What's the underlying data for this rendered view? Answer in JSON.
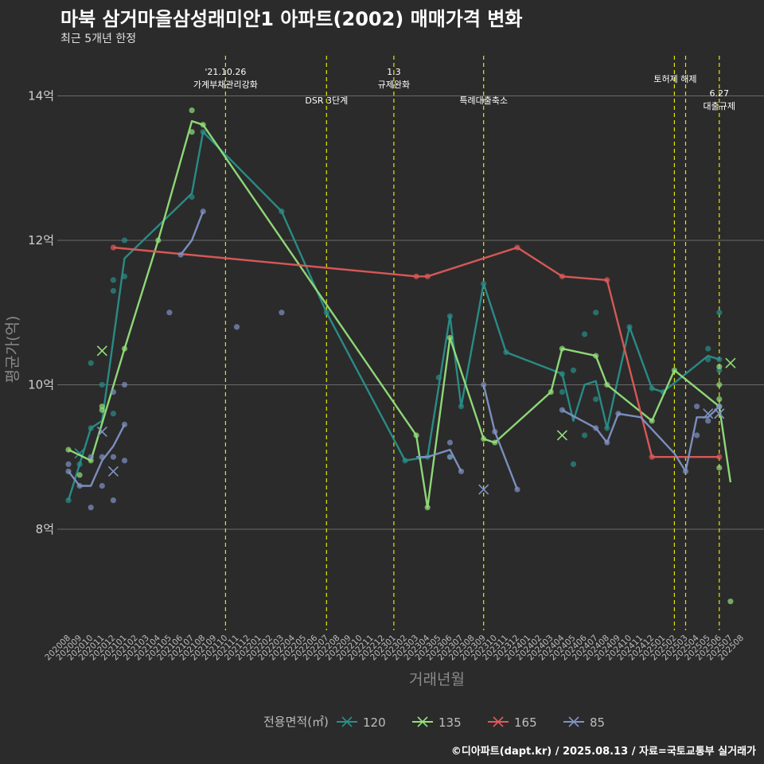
{
  "header": {
    "title": "마북 삼거마을삼성래미안1 아파트(2002) 매매가격 변화",
    "subtitle": "최근 5개년 한정"
  },
  "footer": "©디아파트(dapt.kr) / 2025.08.13 / 자료=국토교통부 실거래가",
  "colors": {
    "background": "#2b2b2b",
    "grid": "#6a6a6a",
    "event_line": "#e6e600",
    "s120": "#2a8f8a",
    "s135": "#94e07a",
    "s165": "#e05a5a",
    "s85": "#7f93c4"
  },
  "chart_data": {
    "type": "line",
    "xlabel": "거래년월",
    "ylabel": "평균가(억)",
    "ylim": [
      6.6,
      14.6
    ],
    "yticks": [
      8,
      10,
      12,
      14
    ],
    "ytick_labels": [
      "8억",
      "10억",
      "12억",
      "14억"
    ],
    "x": [
      "202008",
      "202009",
      "202010",
      "202011",
      "202012",
      "202101",
      "202102",
      "202103",
      "202104",
      "202105",
      "202106",
      "202107",
      "202108",
      "202109",
      "202110",
      "202111",
      "202112",
      "202201",
      "202202",
      "202203",
      "202204",
      "202205",
      "202206",
      "202207",
      "202208",
      "202209",
      "202210",
      "202211",
      "202212",
      "202301",
      "202302",
      "202303",
      "202304",
      "202305",
      "202306",
      "202307",
      "202308",
      "202309",
      "202310",
      "202311",
      "202312",
      "202401",
      "202402",
      "202403",
      "202404",
      "202405",
      "202406",
      "202407",
      "202408",
      "202409",
      "202410",
      "202411",
      "202412",
      "202501",
      "202502",
      "202503",
      "202504",
      "202505",
      "202506",
      "202507",
      "202508"
    ],
    "legend": {
      "title": "전용면적(㎡)",
      "position": "bottom"
    },
    "grid": true,
    "events": [
      {
        "x": "202110",
        "label": "'21.10.26\n가계부채관리강화",
        "level": 0
      },
      {
        "x": "202207",
        "label": "DSR 3단계",
        "level": 2
      },
      {
        "x": "202301",
        "label": "1.3\n규제완화",
        "level": 0
      },
      {
        "x": "202309",
        "label": "특례대출축소",
        "level": 2
      },
      {
        "x": "202502",
        "label": "토허제 해제",
        "level": 1
      },
      {
        "x": "202503",
        "label": "",
        "level": 1
      },
      {
        "x": "202506",
        "label": "6.27\n대출규제",
        "level": 3
      }
    ],
    "series": [
      {
        "name": "120",
        "color": "#2a8f8a",
        "line": [
          [
            "202008",
            8.4
          ],
          [
            "202010",
            9.4
          ],
          [
            "202011",
            9.5
          ],
          [
            "202101",
            11.75
          ],
          [
            "202107",
            12.65
          ],
          [
            "202108",
            13.5
          ],
          [
            "202203",
            12.4
          ],
          [
            "202207",
            11.0
          ],
          [
            "202302",
            8.95
          ],
          [
            "202304",
            9.0
          ],
          [
            "202306",
            10.95
          ],
          [
            "202307",
            9.7
          ],
          [
            "202309",
            11.4
          ],
          [
            "202311",
            10.45
          ],
          [
            "202404",
            10.15
          ],
          [
            "202405",
            9.5
          ],
          [
            "202406",
            10.0
          ],
          [
            "202407",
            10.05
          ],
          [
            "202408",
            9.4
          ],
          [
            "202410",
            10.8
          ],
          [
            "202412",
            9.95
          ],
          [
            "202501",
            9.9
          ],
          [
            "202505",
            10.4
          ],
          [
            "202506",
            10.35
          ]
        ],
        "points": [
          [
            "202008",
            8.4
          ],
          [
            "202009",
            8.9
          ],
          [
            "202010",
            9.4
          ],
          [
            "202010",
            10.3
          ],
          [
            "202011",
            10.0
          ],
          [
            "202012",
            11.45
          ],
          [
            "202012",
            11.3
          ],
          [
            "202012",
            9.6
          ],
          [
            "202101",
            12.0
          ],
          [
            "202101",
            11.5
          ],
          [
            "202107",
            12.6
          ],
          [
            "202108",
            13.5
          ],
          [
            "202203",
            12.4
          ],
          [
            "202207",
            11.0
          ],
          [
            "202302",
            8.95
          ],
          [
            "202304",
            9.0
          ],
          [
            "202305",
            10.1
          ],
          [
            "202306",
            10.95
          ],
          [
            "202306",
            9.0
          ],
          [
            "202307",
            9.7
          ],
          [
            "202309",
            11.4
          ],
          [
            "202311",
            10.45
          ],
          [
            "202404",
            10.15
          ],
          [
            "202404",
            9.9
          ],
          [
            "202405",
            10.2
          ],
          [
            "202405",
            8.9
          ],
          [
            "202406",
            10.7
          ],
          [
            "202406",
            9.3
          ],
          [
            "202407",
            11.0
          ],
          [
            "202407",
            9.8
          ],
          [
            "202408",
            9.4
          ],
          [
            "202410",
            10.8
          ],
          [
            "202412",
            9.95
          ],
          [
            "202501",
            9.9
          ],
          [
            "202505",
            10.5
          ],
          [
            "202505",
            10.35
          ],
          [
            "202506",
            11.0
          ],
          [
            "202506",
            10.35
          ],
          [
            "202506",
            10.2
          ]
        ],
        "crosses": [
          [
            "202009",
            9.05
          ]
        ]
      },
      {
        "name": "135",
        "color": "#94e07a",
        "line": [
          [
            "202008",
            9.1
          ],
          [
            "202010",
            8.95
          ],
          [
            "202101",
            10.5
          ],
          [
            "202104",
            12.0
          ],
          [
            "202107",
            13.65
          ],
          [
            "202108",
            13.6
          ],
          [
            "202303",
            9.3
          ],
          [
            "202304",
            8.3
          ],
          [
            "202306",
            10.65
          ],
          [
            "202309",
            9.25
          ],
          [
            "202310",
            9.2
          ],
          [
            "202403",
            9.9
          ],
          [
            "202404",
            10.5
          ],
          [
            "202407",
            10.4
          ],
          [
            "202408",
            10.0
          ],
          [
            "202412",
            9.5
          ],
          [
            "202502",
            10.2
          ],
          [
            "202506",
            9.7
          ],
          [
            "202507",
            8.65
          ]
        ],
        "points": [
          [
            "202008",
            9.1
          ],
          [
            "202009",
            8.75
          ],
          [
            "202010",
            8.95
          ],
          [
            "202011",
            9.7
          ],
          [
            "202011",
            9.65
          ],
          [
            "202101",
            10.5
          ],
          [
            "202104",
            12.0
          ],
          [
            "202107",
            13.8
          ],
          [
            "202107",
            13.5
          ],
          [
            "202108",
            13.6
          ],
          [
            "202303",
            9.3
          ],
          [
            "202304",
            8.3
          ],
          [
            "202306",
            10.65
          ],
          [
            "202309",
            9.25
          ],
          [
            "202310",
            9.2
          ],
          [
            "202403",
            9.9
          ],
          [
            "202404",
            10.5
          ],
          [
            "202407",
            10.4
          ],
          [
            "202408",
            10.0
          ],
          [
            "202412",
            9.5
          ],
          [
            "202502",
            10.2
          ],
          [
            "202506",
            10.25
          ],
          [
            "202506",
            10.0
          ],
          [
            "202506",
            9.8
          ],
          [
            "202506",
            9.7
          ],
          [
            "202506",
            8.85
          ],
          [
            "202507",
            7.0
          ]
        ],
        "crosses": [
          [
            "202011",
            10.47
          ],
          [
            "202404",
            9.3
          ],
          [
            "202507",
            10.3
          ]
        ]
      },
      {
        "name": "165",
        "color": "#e05a5a",
        "line": [
          [
            "202012",
            11.9
          ],
          [
            "202303",
            11.5
          ],
          [
            "202304",
            11.5
          ],
          [
            "202312",
            11.9
          ],
          [
            "202404",
            11.5
          ],
          [
            "202408",
            11.45
          ],
          [
            "202412",
            9.0
          ],
          [
            "202506",
            9.0
          ]
        ],
        "points": [
          [
            "202012",
            11.9
          ],
          [
            "202303",
            11.5
          ],
          [
            "202304",
            11.5
          ],
          [
            "202312",
            11.9
          ],
          [
            "202404",
            11.5
          ],
          [
            "202408",
            11.45
          ],
          [
            "202412",
            9.0
          ],
          [
            "202506",
            9.0
          ]
        ],
        "crosses": []
      },
      {
        "name": "85",
        "color": "#7f93c4",
        "line": [
          [
            "202008",
            8.8
          ],
          [
            "202009",
            8.6
          ],
          [
            "202010",
            8.6
          ],
          [
            "202011",
            8.95
          ],
          [
            "202012",
            9.15
          ],
          [
            "202101",
            9.45
          ]
        ],
        "line2": [
          [
            "202106",
            11.8
          ],
          [
            "202107",
            12.0
          ],
          [
            "202108",
            12.4
          ]
        ],
        "line3": [
          [
            "202303",
            9.0
          ],
          [
            "202304",
            9.0
          ],
          [
            "202306",
            9.1
          ],
          [
            "202307",
            8.8
          ]
        ],
        "line4": [
          [
            "202309",
            10.0
          ],
          [
            "202310",
            9.35
          ],
          [
            "202312",
            8.55
          ]
        ],
        "line5": [
          [
            "202404",
            9.65
          ],
          [
            "202407",
            9.4
          ],
          [
            "202408",
            9.2
          ],
          [
            "202409",
            9.6
          ],
          [
            "202411",
            9.55
          ],
          [
            "202502",
            9.05
          ],
          [
            "202503",
            8.8
          ],
          [
            "202504",
            9.55
          ],
          [
            "202505",
            9.55
          ],
          [
            "202506",
            9.7
          ]
        ],
        "points": [
          [
            "202008",
            8.9
          ],
          [
            "202008",
            8.8
          ],
          [
            "202009",
            8.6
          ],
          [
            "202010",
            8.3
          ],
          [
            "202010",
            9.0
          ],
          [
            "202011",
            8.6
          ],
          [
            "202011",
            9.0
          ],
          [
            "202012",
            8.4
          ],
          [
            "202012",
            9.0
          ],
          [
            "202012",
            9.9
          ],
          [
            "202101",
            10.0
          ],
          [
            "202101",
            8.95
          ],
          [
            "202101",
            9.45
          ],
          [
            "202105",
            11.0
          ],
          [
            "202106",
            11.8
          ],
          [
            "202108",
            12.4
          ],
          [
            "202111",
            10.8
          ],
          [
            "202203",
            11.0
          ],
          [
            "202306",
            9.2
          ],
          [
            "202306",
            9.0
          ],
          [
            "202307",
            8.8
          ],
          [
            "202309",
            10.0
          ],
          [
            "202310",
            9.35
          ],
          [
            "202312",
            8.55
          ],
          [
            "202404",
            9.65
          ],
          [
            "202407",
            9.4
          ],
          [
            "202408",
            9.2
          ],
          [
            "202409",
            9.6
          ],
          [
            "202503",
            8.8
          ],
          [
            "202504",
            9.7
          ],
          [
            "202504",
            9.3
          ],
          [
            "202505",
            9.5
          ],
          [
            "202506",
            9.7
          ]
        ],
        "crosses": [
          [
            "202011",
            9.35
          ],
          [
            "202012",
            8.8
          ],
          [
            "202309",
            8.55
          ],
          [
            "202505",
            9.6
          ],
          [
            "202506",
            9.6
          ]
        ]
      }
    ]
  }
}
